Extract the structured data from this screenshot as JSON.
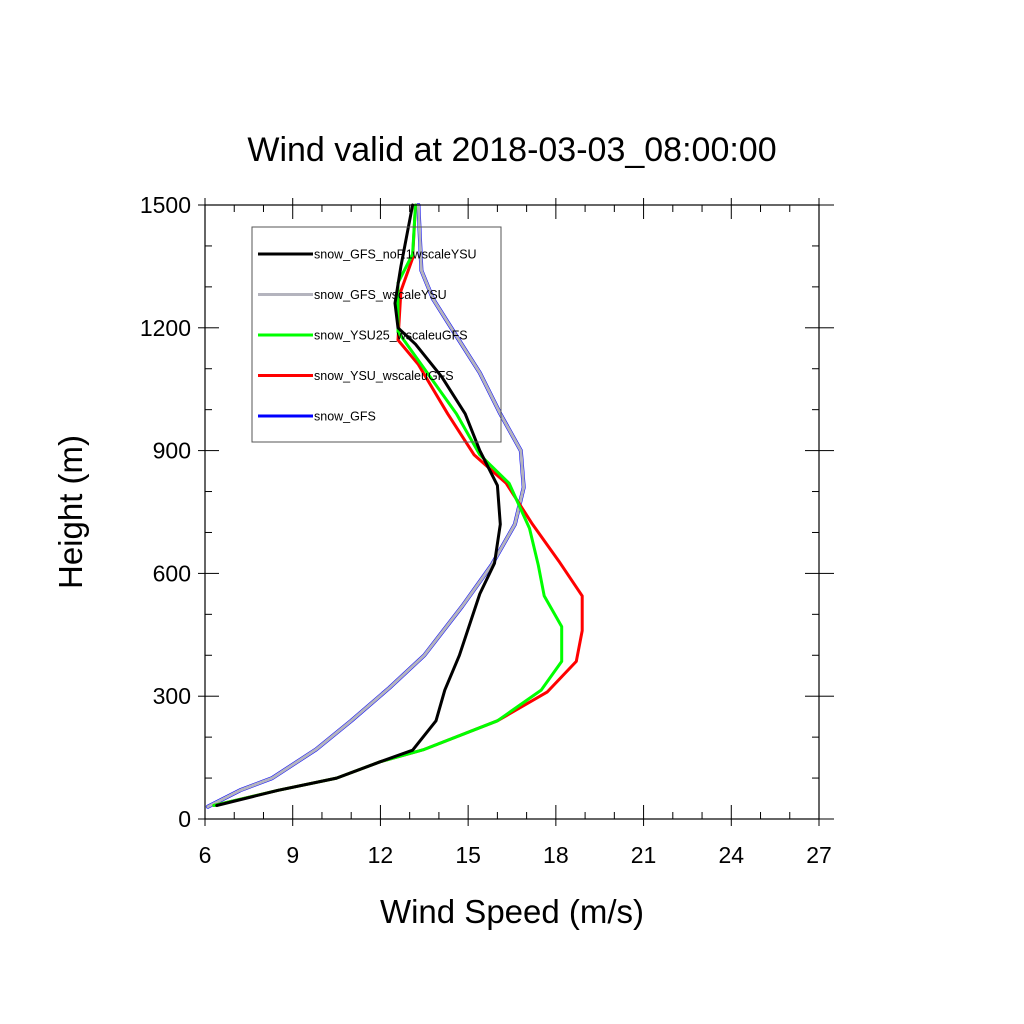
{
  "chart_data": {
    "type": "line",
    "title": "Wind valid at 2018-03-03_08:00:00",
    "xlabel": "Wind Speed (m/s)",
    "ylabel": "Height (m)",
    "xlim": [
      6,
      27
    ],
    "ylim": [
      0,
      1500
    ],
    "xticks": [
      6,
      9,
      12,
      15,
      18,
      21,
      24,
      27
    ],
    "yticks": [
      0,
      300,
      600,
      900,
      1200,
      1500
    ],
    "xtick_labels": [
      "6",
      "9",
      "12",
      "15",
      "18",
      "21",
      "24",
      "27"
    ],
    "ytick_labels": [
      "0",
      "300",
      "600",
      "900",
      "1200",
      "1500"
    ],
    "grid": false,
    "legend_position": "top-left",
    "series": [
      {
        "name": "snow_GFS_noR1wscaleYSU",
        "color": "#000000",
        "points": [
          [
            6.4,
            33
          ],
          [
            8.5,
            70
          ],
          [
            10.5,
            100
          ],
          [
            12.0,
            140
          ],
          [
            13.1,
            168
          ],
          [
            13.9,
            240
          ],
          [
            14.2,
            315
          ],
          [
            14.7,
            400
          ],
          [
            15.4,
            550
          ],
          [
            15.9,
            625
          ],
          [
            16.1,
            720
          ],
          [
            16.0,
            815
          ],
          [
            15.4,
            900
          ],
          [
            14.9,
            990
          ],
          [
            14.1,
            1080
          ],
          [
            13.2,
            1160
          ],
          [
            12.6,
            1200
          ],
          [
            12.5,
            1260
          ],
          [
            12.7,
            1350
          ],
          [
            13.1,
            1500
          ]
        ]
      },
      {
        "name": "snow_GFS_wscaleYSU",
        "color": "#b4b4be",
        "points": [
          [
            6.1,
            30
          ],
          [
            7.2,
            70
          ],
          [
            8.3,
            100
          ],
          [
            9.8,
            170
          ],
          [
            11.0,
            240
          ],
          [
            12.3,
            320
          ],
          [
            13.5,
            400
          ],
          [
            14.8,
            520
          ],
          [
            15.8,
            620
          ],
          [
            16.6,
            720
          ],
          [
            16.9,
            810
          ],
          [
            16.8,
            900
          ],
          [
            16.1,
            990
          ],
          [
            15.4,
            1090
          ],
          [
            14.6,
            1180
          ],
          [
            13.8,
            1270
          ],
          [
            13.4,
            1340
          ],
          [
            13.3,
            1500
          ]
        ]
      },
      {
        "name": "snow_YSU25_wscaleuGFS",
        "color": "#00ff00",
        "points": [
          [
            6.3,
            33
          ],
          [
            8.5,
            70
          ],
          [
            10.5,
            100
          ],
          [
            12.0,
            140
          ],
          [
            13.5,
            170
          ],
          [
            16.0,
            240
          ],
          [
            17.5,
            315
          ],
          [
            18.2,
            385
          ],
          [
            18.2,
            470
          ],
          [
            17.6,
            545
          ],
          [
            17.4,
            620
          ],
          [
            17.1,
            710
          ],
          [
            16.4,
            820
          ],
          [
            15.4,
            890
          ],
          [
            14.6,
            990
          ],
          [
            13.4,
            1110
          ],
          [
            12.6,
            1190
          ],
          [
            12.6,
            1310
          ],
          [
            13.1,
            1380
          ],
          [
            13.2,
            1500
          ]
        ]
      },
      {
        "name": "snow_YSU_wscaleuGFS",
        "color": "#ff0000",
        "points": [
          [
            6.3,
            33
          ],
          [
            8.5,
            70
          ],
          [
            10.5,
            100
          ],
          [
            12.0,
            140
          ],
          [
            13.5,
            170
          ],
          [
            16.0,
            240
          ],
          [
            17.7,
            310
          ],
          [
            18.7,
            385
          ],
          [
            18.9,
            460
          ],
          [
            18.9,
            545
          ],
          [
            18.1,
            630
          ],
          [
            17.2,
            720
          ],
          [
            16.3,
            820
          ],
          [
            15.2,
            890
          ],
          [
            14.3,
            990
          ],
          [
            13.3,
            1110
          ],
          [
            12.6,
            1170
          ],
          [
            12.7,
            1290
          ],
          [
            13.1,
            1370
          ],
          [
            13.2,
            1500
          ]
        ]
      },
      {
        "name": "snow_GFS",
        "color": "#0000ff",
        "points": [
          [
            6.1,
            30
          ],
          [
            7.2,
            70
          ],
          [
            8.3,
            100
          ],
          [
            9.8,
            170
          ],
          [
            11.0,
            240
          ],
          [
            12.3,
            320
          ],
          [
            13.5,
            400
          ],
          [
            14.8,
            520
          ],
          [
            15.8,
            620
          ],
          [
            16.6,
            720
          ],
          [
            16.9,
            810
          ],
          [
            16.8,
            900
          ],
          [
            16.1,
            990
          ],
          [
            15.4,
            1090
          ],
          [
            14.6,
            1180
          ],
          [
            13.8,
            1270
          ],
          [
            13.4,
            1340
          ],
          [
            13.3,
            1500
          ]
        ]
      }
    ]
  }
}
